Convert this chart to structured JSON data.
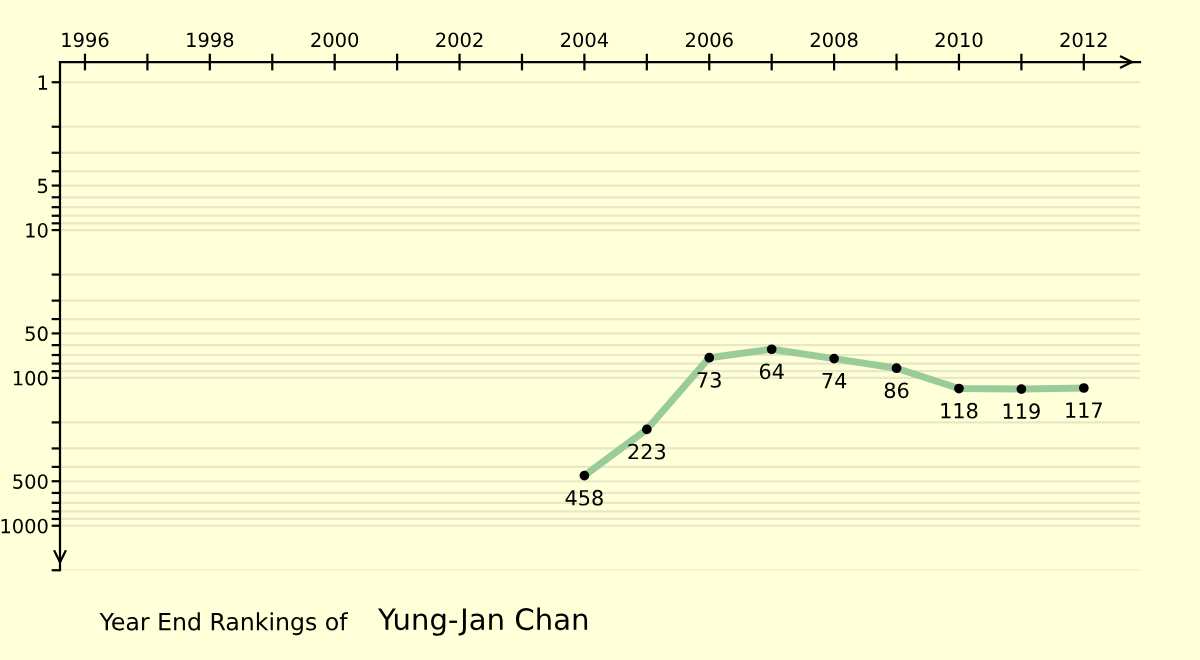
{
  "chart_data": {
    "type": "line",
    "title": "Year End Rankings of",
    "subtitle": "Yung-Jan Chan",
    "x": [
      2004,
      2005,
      2006,
      2007,
      2008,
      2009,
      2010,
      2011,
      2012
    ],
    "series": [
      {
        "color": "#99cc99",
        "values": [
          458,
          223,
          73,
          64,
          74,
          86,
          118,
          119,
          117
        ]
      }
    ],
    "data_labels": true,
    "marker": "circle",
    "line_style": "solid",
    "log": true,
    "grid": "y",
    "xlim": [
      1995.6,
      2012.9
    ],
    "ylim": [
      2000,
      0.73
    ],
    "xticks": [
      1996,
      {
        "value": 1997,
        "label": null
      },
      1998,
      {
        "value": 1999,
        "label": null
      },
      2000,
      {
        "value": 2001,
        "label": null
      },
      2002,
      {
        "value": 2003,
        "label": null
      },
      2004,
      {
        "value": 2005,
        "label": null
      },
      2006,
      {
        "value": 2007,
        "label": null
      },
      2008,
      {
        "value": 2009,
        "label": null
      },
      2010,
      {
        "value": 2011,
        "label": null
      },
      2012
    ],
    "yticks": [
      1,
      {
        "value": 2,
        "label": null
      },
      {
        "value": 3,
        "label": null
      },
      {
        "value": 4,
        "label": null
      },
      5,
      {
        "value": 6,
        "label": null
      },
      {
        "value": 7,
        "label": null
      },
      {
        "value": 8,
        "label": null
      },
      {
        "value": 9,
        "label": null
      },
      10,
      {
        "value": 20,
        "label": null
      },
      {
        "value": 30,
        "label": null
      },
      {
        "value": 40,
        "label": null
      },
      50,
      {
        "value": 60,
        "label": null
      },
      {
        "value": 70,
        "label": null
      },
      {
        "value": 80,
        "label": null
      },
      {
        "value": 90,
        "label": null
      },
      100,
      {
        "value": 200,
        "label": null
      },
      {
        "value": 300,
        "label": null
      },
      {
        "value": 400,
        "label": null
      },
      500,
      {
        "value": 600,
        "label": null
      },
      {
        "value": 700,
        "label": null
      },
      {
        "value": 800,
        "label": null
      },
      {
        "value": 900,
        "label": null
      },
      1000,
      {
        "value": 2000,
        "label": null
      }
    ]
  }
}
